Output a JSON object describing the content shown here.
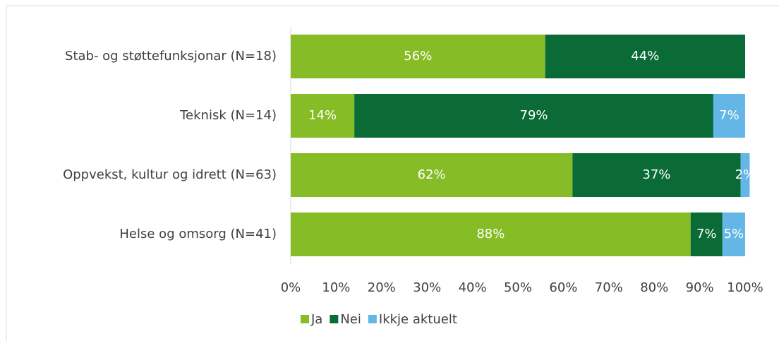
{
  "chart_data": {
    "type": "stacked_barh",
    "categories": [
      "Stab- og støttefunksjonar (N=18)",
      "Teknisk (N=14)",
      "Oppvekst, kultur og idrett (N=63)",
      "Helse og omsorg (N=41)"
    ],
    "series": [
      {
        "name": "Ja",
        "color": "#86bc25",
        "values": [
          56,
          14,
          62,
          88
        ],
        "value_labels": [
          "56%",
          "14%",
          "62%",
          "88%"
        ]
      },
      {
        "name": "Nei",
        "color": "#0a6b37",
        "values": [
          44,
          79,
          37,
          7
        ],
        "value_labels": [
          "44%",
          "79%",
          "37%",
          "7%"
        ]
      },
      {
        "name": "Ikkje aktuelt",
        "color": "#63b6e6",
        "values": [
          0,
          7,
          2,
          5
        ],
        "value_labels": [
          null,
          "7%",
          "2%",
          "5%"
        ]
      }
    ],
    "xlim": [
      0,
      100
    ],
    "xticks": [
      {
        "value": 0,
        "label": "0%"
      },
      {
        "value": 10,
        "label": "10%"
      },
      {
        "value": 20,
        "label": "20%"
      },
      {
        "value": 30,
        "label": "30%"
      },
      {
        "value": 40,
        "label": "40%"
      },
      {
        "value": 50,
        "label": "50%"
      },
      {
        "value": 60,
        "label": "60%"
      },
      {
        "value": 70,
        "label": "70%"
      },
      {
        "value": 80,
        "label": "80%"
      },
      {
        "value": 90,
        "label": "90%"
      },
      {
        "value": 100,
        "label": "100%"
      }
    ],
    "legend": "bottom"
  }
}
